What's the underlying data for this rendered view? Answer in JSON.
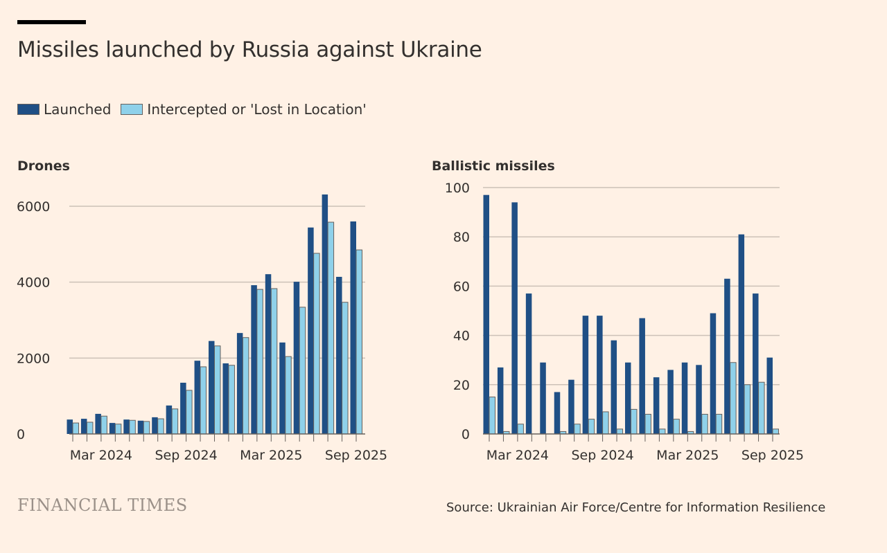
{
  "title": "Missiles launched by Russia against Ukraine",
  "legend": [
    {
      "label": "Launched",
      "color": "#1f4f85"
    },
    {
      "label": "Intercepted or 'Lost in Location'",
      "color": "#8fd1ea"
    }
  ],
  "footer": {
    "brand": "FINANCIAL TIMES",
    "source": "Source: Ukrainian Air Force/Centre for Information Resilience"
  },
  "chart_data": [
    {
      "type": "bar",
      "title": "Drones",
      "categories": [
        "Jan 2024",
        "Feb 2024",
        "Mar 2024",
        "Apr 2024",
        "May 2024",
        "Jun 2024",
        "Jul 2024",
        "Aug 2024",
        "Sep 2024",
        "Oct 2024",
        "Nov 2024",
        "Dec 2024",
        "Jan 2025",
        "Feb 2025",
        "Mar 2025",
        "Apr 2025",
        "May 2025",
        "Jun 2025",
        "Jul 2025",
        "Aug 2025",
        "Sep 2025"
      ],
      "x_tick_labels": [
        "Mar 2024",
        "Sep 2024",
        "Mar 2025",
        "Sep 2025"
      ],
      "y_ticks": [
        0,
        2000,
        4000,
        6000
      ],
      "ylim": [
        0,
        6000
      ],
      "grid": true,
      "series": [
        {
          "name": "Launched",
          "values": [
            380,
            400,
            530,
            290,
            380,
            350,
            440,
            750,
            1350,
            1930,
            2450,
            1860,
            2660,
            3920,
            4210,
            2410,
            4010,
            5440,
            6310,
            4140,
            5600
          ]
        },
        {
          "name": "Intercepted or 'Lost in Location'",
          "values": [
            290,
            310,
            470,
            260,
            360,
            330,
            400,
            660,
            1150,
            1770,
            2320,
            1810,
            2540,
            3810,
            3830,
            2040,
            3340,
            4760,
            5580,
            3470,
            4850
          ]
        }
      ]
    },
    {
      "type": "bar",
      "title": "Ballistic missiles",
      "categories": [
        "Jan 2024",
        "Feb 2024",
        "Mar 2024",
        "Apr 2024",
        "May 2024",
        "Jun 2024",
        "Jul 2024",
        "Aug 2024",
        "Sep 2024",
        "Oct 2024",
        "Nov 2024",
        "Dec 2024",
        "Jan 2025",
        "Feb 2025",
        "Mar 2025",
        "Apr 2025",
        "May 2025",
        "Jun 2025",
        "Jul 2025",
        "Aug 2025",
        "Sep 2025"
      ],
      "x_tick_labels": [
        "Mar 2024",
        "Sep 2024",
        "Mar 2025",
        "Sep 2025"
      ],
      "y_ticks": [
        0,
        20,
        40,
        60,
        80,
        100
      ],
      "ylim": [
        0,
        100
      ],
      "grid": true,
      "series": [
        {
          "name": "Launched",
          "values": [
            97,
            27,
            94,
            57,
            29,
            17,
            22,
            48,
            48,
            38,
            29,
            47,
            23,
            26,
            29,
            28,
            49,
            63,
            81,
            57,
            31
          ]
        },
        {
          "name": "Intercepted or 'Lost in Location'",
          "values": [
            15,
            1,
            4,
            0,
            0,
            1,
            4,
            6,
            9,
            2,
            10,
            8,
            2,
            6,
            1,
            8,
            8,
            29,
            20,
            21,
            2
          ]
        }
      ]
    }
  ]
}
